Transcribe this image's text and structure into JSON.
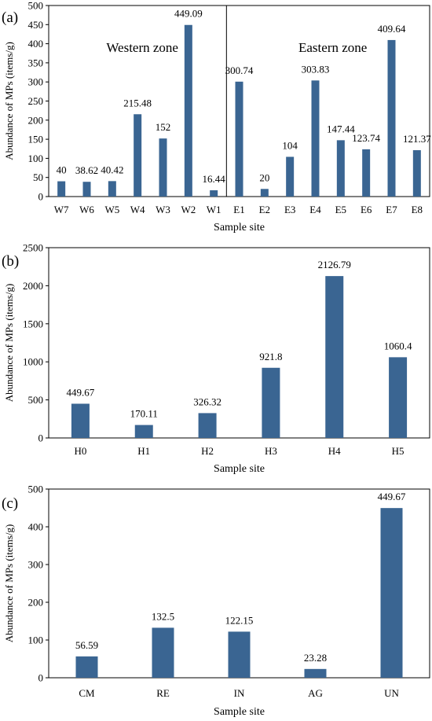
{
  "bar_color": "#3a6592",
  "chart_data": [
    {
      "type": "bar",
      "panel_label": "(a)",
      "title": "",
      "xlabel": "Sample site",
      "ylabel": "Abundance of MPs (items/g)",
      "ylim": [
        0,
        500
      ],
      "yticks": [
        0,
        50,
        100,
        150,
        200,
        250,
        300,
        350,
        400,
        450,
        500
      ],
      "grid": false,
      "categories": [
        "W7",
        "W6",
        "W5",
        "W4",
        "W3",
        "W2",
        "W1",
        "E1",
        "E2",
        "E3",
        "E4",
        "E5",
        "E6",
        "E7",
        "E8"
      ],
      "values": [
        40,
        38.62,
        40.42,
        215.48,
        152,
        449.09,
        16.44,
        300.74,
        20,
        104,
        303.83,
        147.44,
        123.74,
        409.64,
        121.37
      ],
      "value_labels": [
        "40",
        "38.62",
        "40.42",
        "215.48",
        "152",
        "449.09",
        "16.44",
        "300.74",
        "20",
        "104",
        "303.83",
        "147.44",
        "123.74",
        "409.64",
        "121.37"
      ],
      "zones": [
        "Western zone",
        "Eastern zone"
      ]
    },
    {
      "type": "bar",
      "panel_label": "(b)",
      "title": "",
      "xlabel": "Sample site",
      "ylabel": "Abundance of MPs (items/g)",
      "ylim": [
        0,
        2500
      ],
      "yticks": [
        0,
        500,
        1000,
        1500,
        2000,
        2500
      ],
      "grid": false,
      "categories": [
        "H0",
        "H1",
        "H2",
        "H3",
        "H4",
        "H5"
      ],
      "values": [
        449.67,
        170.11,
        326.32,
        921.8,
        2126.79,
        1060.4
      ],
      "value_labels": [
        "449.67",
        "170.11",
        "326.32",
        "921.8",
        "2126.79",
        "1060.4"
      ]
    },
    {
      "type": "bar",
      "panel_label": "(c)",
      "title": "",
      "xlabel": "Sample site",
      "ylabel": "Abundance of MPs (items/g)",
      "ylim": [
        0,
        500
      ],
      "yticks": [
        0,
        100,
        200,
        300,
        400,
        500
      ],
      "grid": false,
      "categories": [
        "CM",
        "RE",
        "IN",
        "AG",
        "UN"
      ],
      "values": [
        56.59,
        132.5,
        122.15,
        23.28,
        449.67
      ],
      "value_labels": [
        "56.59",
        "132.5",
        "122.15",
        "23.28",
        "449.67"
      ]
    }
  ]
}
